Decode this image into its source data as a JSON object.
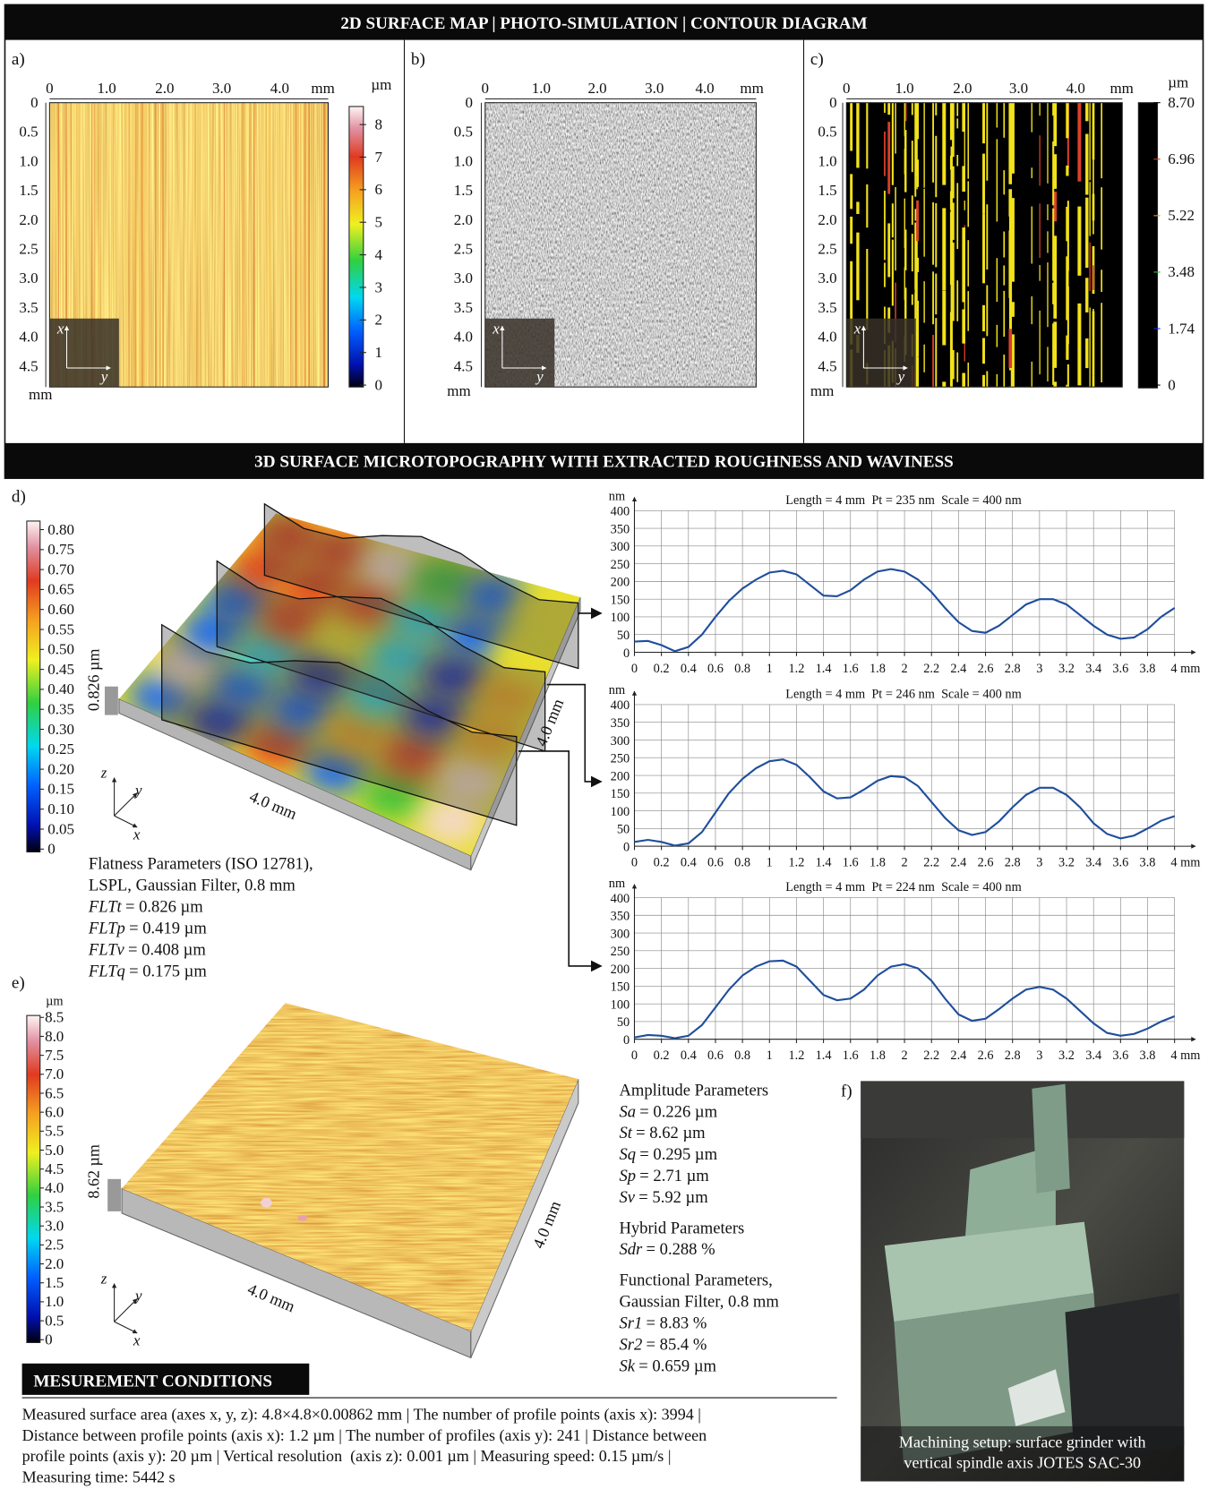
{
  "header_2d": "2D SURFACE MAP | PHOTO-SIMULATION | CONTOUR DIAGRAM",
  "panels": [
    {
      "label": "a)",
      "x_ticks": [
        "0",
        "1.0",
        "2.0",
        "3.0",
        "4.0",
        "mm"
      ],
      "y_ticks": [
        "0",
        "0.5",
        "1.0",
        "1.5",
        "2.0",
        "2.5",
        "3.0",
        "3.5",
        "4.0",
        "4.5"
      ],
      "y_unit": "mm",
      "inset": {
        "x": "x",
        "y": "y"
      },
      "colorbar": {
        "unit": "µm",
        "labels": [
          "0",
          "1",
          "2",
          "3",
          "4",
          "5",
          "6",
          "7",
          "8"
        ]
      }
    },
    {
      "label": "b)",
      "x_ticks": [
        "0",
        "1.0",
        "2.0",
        "3.0",
        "4.0",
        "mm"
      ],
      "y_ticks": [
        "0",
        "0.5",
        "1.0",
        "1.5",
        "2.0",
        "2.5",
        "3.0",
        "3.5",
        "4.0",
        "4.5"
      ],
      "y_unit": "mm",
      "inset": {
        "x": "x",
        "y": "y"
      }
    },
    {
      "label": "c)",
      "x_ticks": [
        "0",
        "1.0",
        "2.0",
        "3.0",
        "4.0",
        "mm"
      ],
      "y_ticks": [
        "0",
        "0.5",
        "1.0",
        "1.5",
        "2.0",
        "2.5",
        "3.0",
        "3.5",
        "4.0",
        "4.5"
      ],
      "y_unit": "mm",
      "inset": {
        "x": "x",
        "y": "y"
      },
      "colorbar": {
        "unit": "µm",
        "labels": [
          "0",
          "1.74",
          "3.48",
          "5.22",
          "6.96",
          "8.70"
        ]
      }
    }
  ],
  "header_3d": "3D SURFACE MICROTOPOGRAPHY WITH EXTRACTED ROUGHNESS AND WAVINESS",
  "panel_d": {
    "label": "d)",
    "colorbar": [
      "0",
      "0.05",
      "0.10",
      "0.15",
      "0.20",
      "0.25",
      "0.30",
      "0.35",
      "0.40",
      "0.45",
      "0.50",
      "0.55",
      "0.60",
      "0.65",
      "0.70",
      "0.75",
      "0.80"
    ],
    "height": "0.826 µm",
    "length_x": "4.0 mm",
    "length_y": "4.0 mm",
    "axes": {
      "z": "z",
      "y": "y",
      "x": "x"
    },
    "flatness": {
      "heading": [
        "Flatness Parameters (ISO 12781),",
        "LSPL, Gaussian Filter, 0.8 mm"
      ],
      "params": [
        [
          "FLTt",
          "= 0.826 µm"
        ],
        [
          "FLTp",
          "= 0.419 µm"
        ],
        [
          "FLTv",
          "= 0.408 µm"
        ],
        [
          "FLTq",
          "= 0.175 µm"
        ]
      ]
    }
  },
  "panel_e": {
    "label": "e)",
    "colorbar": {
      "unit": "µm",
      "labels": [
        "0",
        "0.5",
        "1.0",
        "1.5",
        "2.0",
        "2.5",
        "3.0",
        "3.5",
        "4.0",
        "4.5",
        "5.0",
        "5.5",
        "6.0",
        "6.5",
        "7.0",
        "7.5",
        "8.0",
        "8.5"
      ]
    },
    "height": "8.62 µm",
    "length_x": "4.0 mm",
    "length_y": "4.0 mm",
    "axes": {
      "z": "z",
      "y": "y",
      "x": "x"
    }
  },
  "parameters": [
    {
      "heading": [
        "Amplitude Parameters"
      ],
      "params": [
        [
          "Sa",
          "= 0.226 µm"
        ],
        [
          "St",
          "= 8.62 µm"
        ],
        [
          "Sq",
          "= 0.295 µm"
        ],
        [
          "Sp",
          "= 2.71 µm"
        ],
        [
          "Sv",
          "= 5.92 µm"
        ]
      ]
    },
    {
      "heading": [
        "Hybrid Parameters"
      ],
      "params": [
        [
          "Sdr",
          "= 0.288 %"
        ]
      ]
    },
    {
      "heading": [
        "Functional Parameters,",
        "Gaussian Filter, 0.8 mm"
      ],
      "params": [
        [
          "Sr1",
          "= 8.83 %"
        ],
        [
          "Sr2",
          "= 85.4 %"
        ],
        [
          "Sk",
          "= 0.659 µm"
        ]
      ]
    }
  ],
  "panel_f": {
    "label": "f)",
    "caption": [
      "Machining setup: surface grinder with",
      "vertical spindle axis JOTES SAC-30"
    ]
  },
  "conditions": {
    "heading": "MESUREMENT CONDITIONS",
    "lines": [
      "Measured surface area (axes x, y, z): 4.8×4.8×0.00862 mm | The number of profile points (axis x): 3994 |",
      "Distance between profile points (axis x): 1.2 µm | The number of profiles (axis y): 241 | Distance between",
      "profile points (axis y): 20 µm | Vertical resolution  (axis z): 0.001 µm | Measuring speed: 0.15 µm/s |",
      "Measuring time: 5442 s"
    ]
  },
  "chart_data": [
    {
      "type": "line",
      "title": "Length = 4 mm  Pt = 235 nm  Scale = 400 nm",
      "y_label": "nm",
      "color": "#1f4e9c",
      "grid": true,
      "x": [
        0,
        0.1,
        0.2,
        0.3,
        0.4,
        0.5,
        0.6,
        0.7,
        0.8,
        0.9,
        1.0,
        1.1,
        1.2,
        1.3,
        1.4,
        1.5,
        1.6,
        1.7,
        1.8,
        1.9,
        2.0,
        2.1,
        2.2,
        2.3,
        2.4,
        2.5,
        2.6,
        2.7,
        2.8,
        2.9,
        3.0,
        3.1,
        3.2,
        3.3,
        3.4,
        3.5,
        3.6,
        3.7,
        3.8,
        3.9,
        4.0
      ],
      "values": [
        30,
        32,
        20,
        3,
        15,
        50,
        100,
        145,
        180,
        205,
        225,
        230,
        220,
        190,
        160,
        158,
        175,
        205,
        228,
        235,
        228,
        205,
        170,
        125,
        85,
        60,
        55,
        75,
        105,
        135,
        150,
        150,
        135,
        105,
        75,
        50,
        38,
        42,
        65,
        100,
        125
      ],
      "xlim": [
        0,
        4
      ],
      "ylim": [
        0,
        400
      ],
      "xticks": [
        0,
        0.2,
        0.4,
        0.6,
        0.8,
        1,
        1.2,
        1.4,
        1.6,
        1.8,
        2,
        2.2,
        2.4,
        2.6,
        2.8,
        3,
        3.2,
        3.4,
        3.6,
        3.8,
        {
          "value": 4,
          "label": "4 mm"
        }
      ],
      "yticks": [
        0,
        50,
        100,
        150,
        200,
        250,
        300,
        350,
        400
      ]
    },
    {
      "type": "line",
      "title": "Length = 4 mm  Pt = 246 nm  Scale = 400 nm",
      "y_label": "nm",
      "color": "#1f4e9c",
      "grid": true,
      "x": [
        0,
        0.1,
        0.2,
        0.3,
        0.4,
        0.5,
        0.6,
        0.7,
        0.8,
        0.9,
        1.0,
        1.1,
        1.2,
        1.3,
        1.4,
        1.5,
        1.6,
        1.7,
        1.8,
        1.9,
        2.0,
        2.1,
        2.2,
        2.3,
        2.4,
        2.5,
        2.6,
        2.7,
        2.8,
        2.9,
        3.0,
        3.1,
        3.2,
        3.3,
        3.4,
        3.5,
        3.6,
        3.7,
        3.8,
        3.9,
        4.0
      ],
      "values": [
        12,
        18,
        12,
        2,
        8,
        40,
        95,
        150,
        190,
        220,
        240,
        245,
        230,
        195,
        155,
        135,
        138,
        160,
        185,
        198,
        195,
        170,
        125,
        80,
        45,
        32,
        40,
        70,
        110,
        145,
        165,
        165,
        145,
        110,
        65,
        35,
        22,
        30,
        50,
        72,
        85
      ],
      "xlim": [
        0,
        4
      ],
      "ylim": [
        0,
        400
      ],
      "xticks": [
        0,
        0.2,
        0.4,
        0.6,
        0.8,
        1,
        1.2,
        1.4,
        1.6,
        1.8,
        2,
        2.2,
        2.4,
        2.6,
        2.8,
        3,
        3.2,
        3.4,
        3.6,
        3.8,
        {
          "value": 4,
          "label": "4 mm"
        }
      ],
      "yticks": [
        0,
        50,
        100,
        150,
        200,
        250,
        300,
        350,
        400
      ]
    },
    {
      "type": "line",
      "title": "Length = 4 mm  Pt = 224 nm  Scale = 400 nm",
      "y_label": "nm",
      "color": "#1f4e9c",
      "grid": true,
      "x": [
        0,
        0.1,
        0.2,
        0.3,
        0.4,
        0.5,
        0.6,
        0.7,
        0.8,
        0.9,
        1.0,
        1.1,
        1.2,
        1.3,
        1.4,
        1.5,
        1.6,
        1.7,
        1.8,
        1.9,
        2.0,
        2.1,
        2.2,
        2.3,
        2.4,
        2.5,
        2.6,
        2.7,
        2.8,
        2.9,
        3.0,
        3.1,
        3.2,
        3.3,
        3.4,
        3.5,
        3.6,
        3.7,
        3.8,
        3.9,
        4.0
      ],
      "values": [
        5,
        12,
        10,
        3,
        10,
        40,
        90,
        140,
        180,
        205,
        220,
        222,
        205,
        165,
        125,
        110,
        115,
        140,
        180,
        205,
        212,
        200,
        165,
        115,
        70,
        52,
        58,
        85,
        115,
        140,
        148,
        140,
        115,
        80,
        45,
        18,
        10,
        15,
        30,
        50,
        65
      ],
      "xlim": [
        0,
        4
      ],
      "ylim": [
        0,
        400
      ],
      "xticks": [
        0,
        0.2,
        0.4,
        0.6,
        0.8,
        1,
        1.2,
        1.4,
        1.6,
        1.8,
        2,
        2.2,
        2.4,
        2.6,
        2.8,
        3,
        3.2,
        3.4,
        3.6,
        3.8,
        {
          "value": 4,
          "label": "4 mm"
        }
      ],
      "yticks": [
        0,
        50,
        100,
        150,
        200,
        250,
        300,
        350,
        400
      ]
    }
  ]
}
